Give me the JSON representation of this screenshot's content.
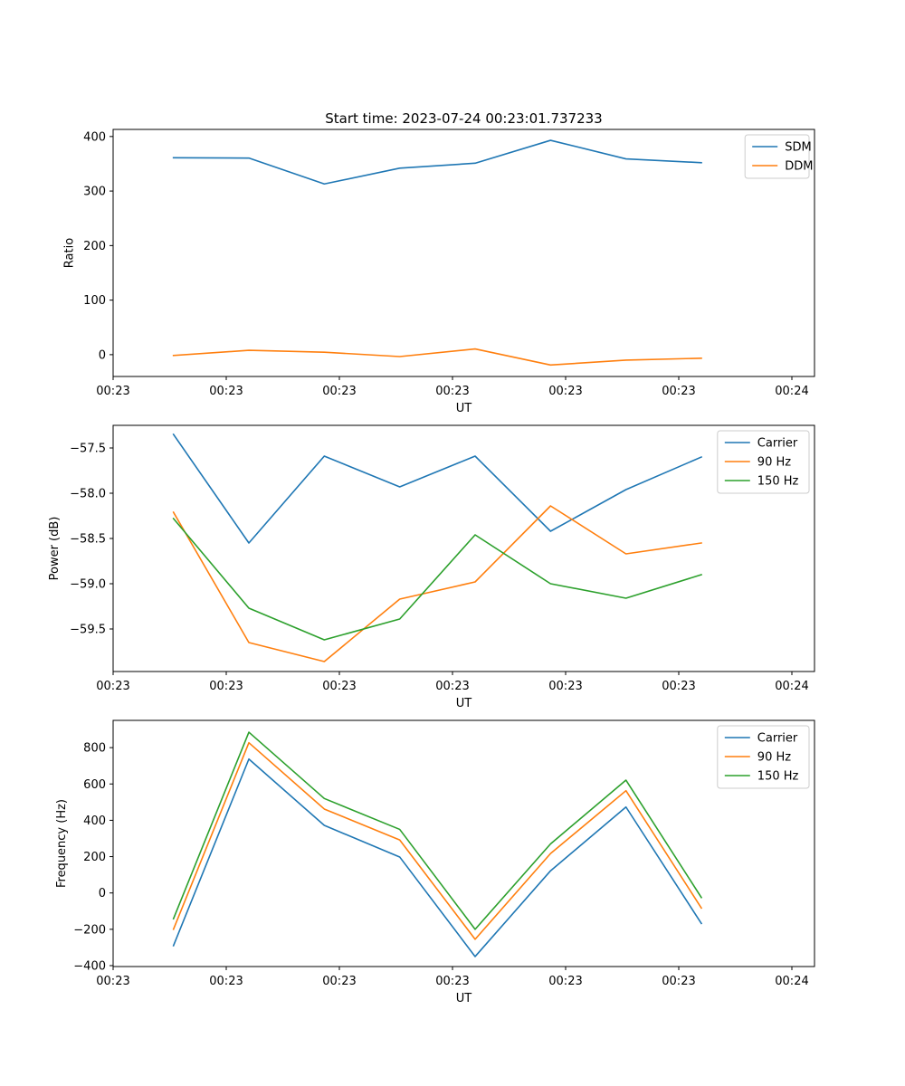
{
  "title": "Start time: 2023-07-24 00:23:01.737233",
  "colors": {
    "blue": "#1f77b4",
    "orange": "#ff7f0e",
    "green": "#2ca02c"
  },
  "chart_data": [
    {
      "type": "line",
      "title": "Start time: 2023-07-24 00:23:01.737233",
      "xlabel": "UT",
      "ylabel": "Ratio",
      "x": [
        1,
        2,
        3,
        4,
        5,
        6,
        7,
        8
      ],
      "xlim": [
        0.2,
        9.5
      ],
      "xticks": [
        0.2,
        1.7,
        3.2,
        4.7,
        6.2,
        7.7,
        9.2
      ],
      "xtick_labels": [
        "00:23",
        "00:23",
        "00:23",
        "00:23",
        "00:23",
        "00:23",
        "00:24"
      ],
      "ylim": [
        -40,
        413
      ],
      "yticks": [
        0,
        100,
        200,
        300,
        400
      ],
      "ytick_labels": [
        "0",
        "100",
        "200",
        "300",
        "400"
      ],
      "legend_position": "top-right",
      "series": [
        {
          "name": "SDM",
          "color": "#1f77b4",
          "values": [
            361,
            360.5,
            313,
            342,
            351,
            393,
            359,
            352
          ]
        },
        {
          "name": "DDM",
          "color": "#ff7f0e",
          "values": [
            -1.5,
            8,
            4.5,
            -3.5,
            10.5,
            -19,
            -10,
            -6.5
          ]
        }
      ]
    },
    {
      "type": "line",
      "title": "",
      "xlabel": "UT",
      "ylabel": "Power (dB)",
      "x": [
        1,
        2,
        3,
        4,
        5,
        6,
        7,
        8
      ],
      "xlim": [
        0.2,
        9.5
      ],
      "xticks": [
        0.2,
        1.7,
        3.2,
        4.7,
        6.2,
        7.7,
        9.2
      ],
      "xtick_labels": [
        "00:23",
        "00:23",
        "00:23",
        "00:23",
        "00:23",
        "00:23",
        "00:24"
      ],
      "ylim": [
        -59.97,
        -57.25
      ],
      "yticks": [
        -59.5,
        -59.0,
        -58.5,
        -58.0,
        -57.5
      ],
      "ytick_labels": [
        "−59.5",
        "−59.0",
        "−58.5",
        "−58.0",
        "−57.5"
      ],
      "legend_position": "top-right",
      "series": [
        {
          "name": "Carrier",
          "color": "#1f77b4",
          "values": [
            -57.35,
            -58.55,
            -57.59,
            -57.93,
            -57.59,
            -58.42,
            -57.96,
            -57.6
          ]
        },
        {
          "name": "90 Hz",
          "color": "#ff7f0e",
          "values": [
            -58.21,
            -59.65,
            -59.86,
            -59.17,
            -58.98,
            -58.14,
            -58.67,
            -58.55
          ]
        },
        {
          "name": "150 Hz",
          "color": "#2ca02c",
          "values": [
            -58.28,
            -59.27,
            -59.62,
            -59.39,
            -58.46,
            -59.0,
            -59.16,
            -58.9
          ]
        }
      ]
    },
    {
      "type": "line",
      "title": "",
      "xlabel": "UT",
      "ylabel": "Frequency (Hz)",
      "x": [
        1,
        2,
        3,
        4,
        5,
        6,
        7,
        8
      ],
      "xlim": [
        0.2,
        9.5
      ],
      "xticks": [
        0.2,
        1.7,
        3.2,
        4.7,
        6.2,
        7.7,
        9.2
      ],
      "xtick_labels": [
        "00:23",
        "00:23",
        "00:23",
        "00:23",
        "00:23",
        "00:23",
        "00:24"
      ],
      "ylim": [
        -405,
        950
      ],
      "yticks": [
        -400,
        -200,
        0,
        200,
        400,
        600,
        800
      ],
      "ytick_labels": [
        "−400",
        "−200",
        "0",
        "200",
        "400",
        "600",
        "800"
      ],
      "legend_position": "top-right",
      "series": [
        {
          "name": "Carrier",
          "color": "#1f77b4",
          "values": [
            -290,
            737,
            372,
            198,
            -350,
            122,
            473,
            -168
          ]
        },
        {
          "name": "90 Hz",
          "color": "#ff7f0e",
          "values": [
            -200,
            827,
            462,
            292,
            -255,
            217,
            563,
            -83
          ]
        },
        {
          "name": "150 Hz",
          "color": "#2ca02c",
          "values": [
            -142,
            885,
            520,
            350,
            -200,
            270,
            621,
            -25
          ]
        }
      ]
    }
  ]
}
